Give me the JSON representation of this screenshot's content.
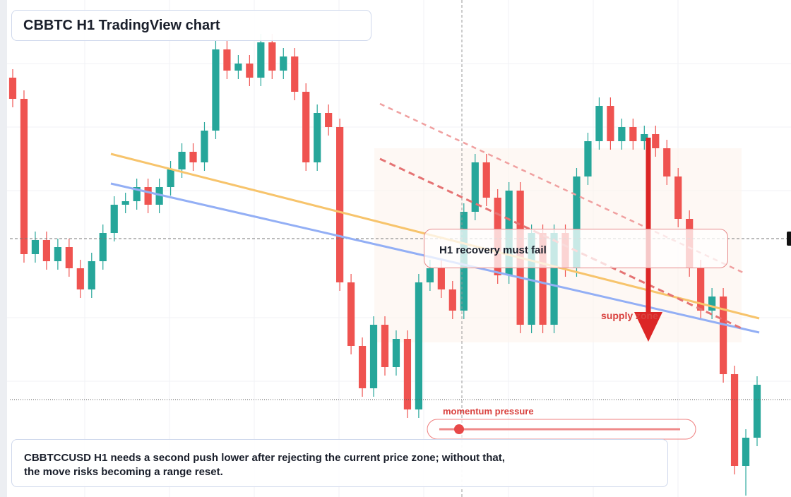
{
  "chart_data": {
    "type": "candlestick",
    "title": "CBBTC H1 TradingView chart",
    "annotations": [
      "H1 recovery must fail",
      "supply zone",
      "momentum pressure"
    ],
    "caption": "CBBTCCUSD H1 needs a second push lower after rejecting the current price zone; without that, the move risks becoming a range reset.",
    "up_color": "#26a69a",
    "down_color": "#ef5350",
    "ylim": [
      0,
      704
    ],
    "open": [
      594,
      564,
      344,
      364,
      334,
      354,
      324,
      294,
      334,
      374,
      414,
      419,
      439,
      414,
      439,
      464,
      489,
      474,
      519,
      634,
      604,
      614,
      594,
      644,
      604,
      624,
      574,
      474,
      544,
      524,
      304,
      214,
      154,
      244,
      184,
      224,
      124,
      304,
      324,
      294,
      264,
      404,
      474,
      424,
      314,
      434,
      244,
      374,
      244,
      374,
      324,
      454,
      504,
      554,
      504,
      524,
      504,
      514,
      494,
      454,
      394,
      324,
      264,
      284,
      174,
      44,
      84
    ],
    "high": [
      606,
      576,
      376,
      376,
      366,
      366,
      336,
      346,
      386,
      426,
      431,
      451,
      451,
      451,
      476,
      501,
      501,
      531,
      646,
      646,
      626,
      626,
      656,
      656,
      636,
      636,
      586,
      556,
      556,
      536,
      316,
      226,
      256,
      256,
      236,
      236,
      316,
      336,
      336,
      306,
      416,
      486,
      486,
      436,
      446,
      446,
      386,
      386,
      386,
      386,
      466,
      516,
      566,
      566,
      536,
      536,
      526,
      526,
      506,
      466,
      406,
      336,
      296,
      296,
      186,
      96,
      171
    ],
    "low": [
      552,
      332,
      332,
      322,
      322,
      312,
      282,
      282,
      322,
      362,
      402,
      407,
      402,
      402,
      427,
      452,
      462,
      462,
      507,
      592,
      592,
      582,
      582,
      592,
      592,
      562,
      462,
      462,
      512,
      292,
      202,
      142,
      142,
      172,
      172,
      112,
      112,
      292,
      282,
      252,
      252,
      392,
      412,
      302,
      302,
      232,
      232,
      232,
      232,
      312,
      312,
      442,
      492,
      492,
      492,
      492,
      492,
      482,
      442,
      382,
      312,
      252,
      252,
      162,
      32,
      2,
      72
    ],
    "close": [
      564,
      344,
      364,
      334,
      354,
      324,
      294,
      334,
      374,
      414,
      419,
      439,
      414,
      439,
      464,
      489,
      474,
      519,
      634,
      604,
      614,
      594,
      644,
      604,
      624,
      574,
      474,
      544,
      524,
      304,
      214,
      154,
      244,
      184,
      224,
      124,
      304,
      324,
      294,
      264,
      404,
      474,
      424,
      314,
      434,
      244,
      374,
      244,
      374,
      324,
      454,
      504,
      554,
      504,
      524,
      504,
      514,
      494,
      454,
      394,
      324,
      264,
      284,
      174,
      44,
      84,
      159
    ]
  }
}
